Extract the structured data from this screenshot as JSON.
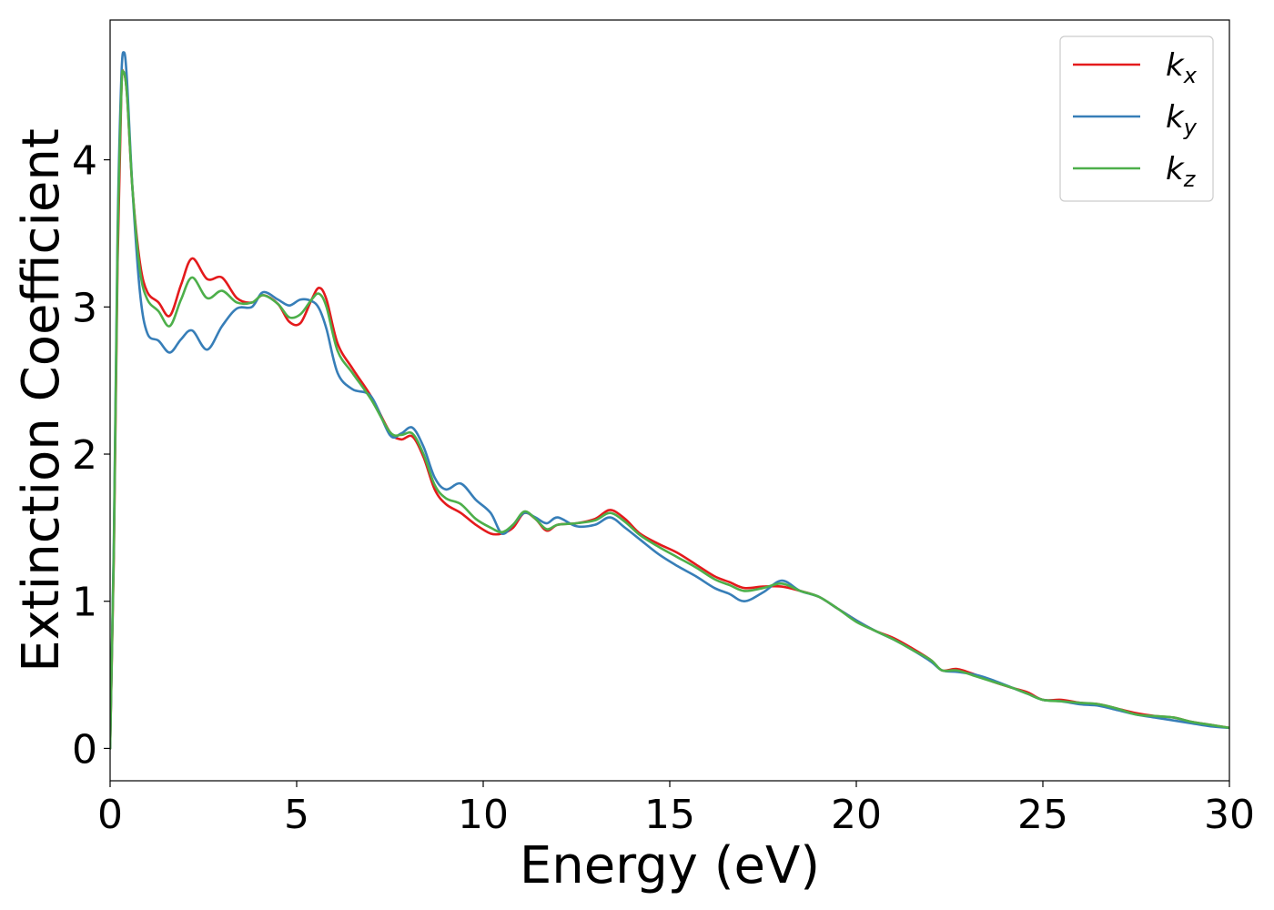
{
  "chart_data": {
    "type": "line",
    "xlabel": "Energy (eV)",
    "ylabel": "Extinction Coefficient",
    "xlim": [
      0,
      30
    ],
    "ylim": [
      -0.22,
      4.95
    ],
    "xticks": [
      0,
      5,
      10,
      15,
      20,
      25,
      30
    ],
    "yticks": [
      0,
      1,
      2,
      3,
      4
    ],
    "grid": false,
    "legend_position": "top-right",
    "series": [
      {
        "name": "k_x",
        "label_base": "k",
        "label_sub": "x",
        "color": "#e41a1c",
        "points": [
          [
            0,
            0
          ],
          [
            0.1,
            1.3
          ],
          [
            0.2,
            3.3
          ],
          [
            0.3,
            4.45
          ],
          [
            0.35,
            4.6
          ],
          [
            0.45,
            4.45
          ],
          [
            0.6,
            3.8
          ],
          [
            0.8,
            3.3
          ],
          [
            1.0,
            3.1
          ],
          [
            1.3,
            3.03
          ],
          [
            1.6,
            2.94
          ],
          [
            1.9,
            3.15
          ],
          [
            2.2,
            3.33
          ],
          [
            2.6,
            3.19
          ],
          [
            3.0,
            3.2
          ],
          [
            3.4,
            3.06
          ],
          [
            3.8,
            3.03
          ],
          [
            4.1,
            3.08
          ],
          [
            4.5,
            3.02
          ],
          [
            4.8,
            2.9
          ],
          [
            5.1,
            2.89
          ],
          [
            5.4,
            3.05
          ],
          [
            5.6,
            3.13
          ],
          [
            5.8,
            3.05
          ],
          [
            6.1,
            2.75
          ],
          [
            6.5,
            2.58
          ],
          [
            7.0,
            2.39
          ],
          [
            7.5,
            2.15
          ],
          [
            7.8,
            2.1
          ],
          [
            8.1,
            2.12
          ],
          [
            8.4,
            1.98
          ],
          [
            8.7,
            1.76
          ],
          [
            9.0,
            1.66
          ],
          [
            9.4,
            1.6
          ],
          [
            9.8,
            1.52
          ],
          [
            10.2,
            1.46
          ],
          [
            10.5,
            1.46
          ],
          [
            10.8,
            1.5
          ],
          [
            11.1,
            1.6
          ],
          [
            11.4,
            1.56
          ],
          [
            11.7,
            1.48
          ],
          [
            12.0,
            1.52
          ],
          [
            12.5,
            1.53
          ],
          [
            13.0,
            1.56
          ],
          [
            13.4,
            1.62
          ],
          [
            13.8,
            1.56
          ],
          [
            14.2,
            1.46
          ],
          [
            14.7,
            1.39
          ],
          [
            15.2,
            1.33
          ],
          [
            15.7,
            1.25
          ],
          [
            16.2,
            1.17
          ],
          [
            16.6,
            1.13
          ],
          [
            17.0,
            1.09
          ],
          [
            17.5,
            1.1
          ],
          [
            18.0,
            1.1
          ],
          [
            18.5,
            1.07
          ],
          [
            19.0,
            1.03
          ],
          [
            19.5,
            0.95
          ],
          [
            20.0,
            0.87
          ],
          [
            20.5,
            0.8
          ],
          [
            21.0,
            0.75
          ],
          [
            21.5,
            0.68
          ],
          [
            22.0,
            0.6
          ],
          [
            22.3,
            0.53
          ],
          [
            22.7,
            0.54
          ],
          [
            23.2,
            0.5
          ],
          [
            23.7,
            0.45
          ],
          [
            24.2,
            0.41
          ],
          [
            24.6,
            0.38
          ],
          [
            25.0,
            0.33
          ],
          [
            25.5,
            0.33
          ],
          [
            26.0,
            0.31
          ],
          [
            26.5,
            0.3
          ],
          [
            27.0,
            0.27
          ],
          [
            27.5,
            0.24
          ],
          [
            28.0,
            0.22
          ],
          [
            28.5,
            0.21
          ],
          [
            29.0,
            0.18
          ],
          [
            29.5,
            0.16
          ],
          [
            30.0,
            0.14
          ]
        ]
      },
      {
        "name": "k_y",
        "label_base": "k",
        "label_sub": "y",
        "color": "#377eb8",
        "points": [
          [
            0,
            0
          ],
          [
            0.1,
            1.4
          ],
          [
            0.2,
            3.5
          ],
          [
            0.3,
            4.55
          ],
          [
            0.37,
            4.73
          ],
          [
            0.45,
            4.55
          ],
          [
            0.6,
            3.8
          ],
          [
            0.8,
            3.1
          ],
          [
            1.0,
            2.82
          ],
          [
            1.3,
            2.77
          ],
          [
            1.6,
            2.69
          ],
          [
            1.9,
            2.78
          ],
          [
            2.2,
            2.84
          ],
          [
            2.6,
            2.71
          ],
          [
            3.0,
            2.87
          ],
          [
            3.4,
            2.99
          ],
          [
            3.8,
            3.0
          ],
          [
            4.1,
            3.1
          ],
          [
            4.5,
            3.05
          ],
          [
            4.8,
            3.01
          ],
          [
            5.1,
            3.05
          ],
          [
            5.4,
            3.04
          ],
          [
            5.6,
            2.99
          ],
          [
            5.8,
            2.85
          ],
          [
            6.1,
            2.55
          ],
          [
            6.5,
            2.44
          ],
          [
            7.0,
            2.39
          ],
          [
            7.5,
            2.13
          ],
          [
            7.8,
            2.14
          ],
          [
            8.1,
            2.18
          ],
          [
            8.4,
            2.05
          ],
          [
            8.7,
            1.84
          ],
          [
            9.0,
            1.76
          ],
          [
            9.4,
            1.8
          ],
          [
            9.8,
            1.69
          ],
          [
            10.2,
            1.6
          ],
          [
            10.5,
            1.46
          ],
          [
            10.8,
            1.52
          ],
          [
            11.1,
            1.6
          ],
          [
            11.4,
            1.57
          ],
          [
            11.7,
            1.53
          ],
          [
            12.0,
            1.57
          ],
          [
            12.5,
            1.51
          ],
          [
            13.0,
            1.52
          ],
          [
            13.4,
            1.57
          ],
          [
            13.8,
            1.5
          ],
          [
            14.2,
            1.42
          ],
          [
            14.7,
            1.32
          ],
          [
            15.2,
            1.24
          ],
          [
            15.7,
            1.17
          ],
          [
            16.2,
            1.09
          ],
          [
            16.6,
            1.05
          ],
          [
            17.0,
            1.0
          ],
          [
            17.5,
            1.06
          ],
          [
            18.0,
            1.14
          ],
          [
            18.5,
            1.07
          ],
          [
            19.0,
            1.03
          ],
          [
            19.5,
            0.95
          ],
          [
            20.0,
            0.87
          ],
          [
            20.5,
            0.8
          ],
          [
            21.0,
            0.74
          ],
          [
            21.5,
            0.67
          ],
          [
            22.0,
            0.59
          ],
          [
            22.3,
            0.53
          ],
          [
            22.7,
            0.52
          ],
          [
            23.2,
            0.5
          ],
          [
            23.7,
            0.46
          ],
          [
            24.2,
            0.41
          ],
          [
            24.6,
            0.37
          ],
          [
            25.0,
            0.33
          ],
          [
            25.5,
            0.32
          ],
          [
            26.0,
            0.3
          ],
          [
            26.5,
            0.29
          ],
          [
            27.0,
            0.26
          ],
          [
            27.5,
            0.23
          ],
          [
            28.0,
            0.21
          ],
          [
            28.5,
            0.19
          ],
          [
            29.0,
            0.17
          ],
          [
            29.5,
            0.15
          ],
          [
            30.0,
            0.14
          ]
        ]
      },
      {
        "name": "k_z",
        "label_base": "k",
        "label_sub": "z",
        "color": "#4daf4a",
        "points": [
          [
            0,
            0
          ],
          [
            0.1,
            1.35
          ],
          [
            0.2,
            3.4
          ],
          [
            0.3,
            4.45
          ],
          [
            0.35,
            4.6
          ],
          [
            0.45,
            4.45
          ],
          [
            0.6,
            3.8
          ],
          [
            0.8,
            3.25
          ],
          [
            1.0,
            3.05
          ],
          [
            1.3,
            2.97
          ],
          [
            1.6,
            2.87
          ],
          [
            1.9,
            3.05
          ],
          [
            2.2,
            3.2
          ],
          [
            2.6,
            3.06
          ],
          [
            3.0,
            3.11
          ],
          [
            3.4,
            3.03
          ],
          [
            3.8,
            3.03
          ],
          [
            4.1,
            3.08
          ],
          [
            4.5,
            3.02
          ],
          [
            4.8,
            2.93
          ],
          [
            5.1,
            2.95
          ],
          [
            5.4,
            3.05
          ],
          [
            5.6,
            3.09
          ],
          [
            5.8,
            3.0
          ],
          [
            6.1,
            2.7
          ],
          [
            6.5,
            2.55
          ],
          [
            7.0,
            2.37
          ],
          [
            7.5,
            2.15
          ],
          [
            7.8,
            2.13
          ],
          [
            8.1,
            2.14
          ],
          [
            8.4,
            2.0
          ],
          [
            8.7,
            1.79
          ],
          [
            9.0,
            1.7
          ],
          [
            9.4,
            1.66
          ],
          [
            9.8,
            1.56
          ],
          [
            10.2,
            1.5
          ],
          [
            10.5,
            1.47
          ],
          [
            10.8,
            1.52
          ],
          [
            11.1,
            1.61
          ],
          [
            11.4,
            1.56
          ],
          [
            11.7,
            1.49
          ],
          [
            12.0,
            1.52
          ],
          [
            12.5,
            1.53
          ],
          [
            13.0,
            1.55
          ],
          [
            13.4,
            1.6
          ],
          [
            13.8,
            1.54
          ],
          [
            14.2,
            1.45
          ],
          [
            14.7,
            1.37
          ],
          [
            15.2,
            1.3
          ],
          [
            15.7,
            1.23
          ],
          [
            16.2,
            1.15
          ],
          [
            16.6,
            1.11
          ],
          [
            17.0,
            1.07
          ],
          [
            17.5,
            1.09
          ],
          [
            18.0,
            1.12
          ],
          [
            18.5,
            1.07
          ],
          [
            19.0,
            1.03
          ],
          [
            19.5,
            0.95
          ],
          [
            20.0,
            0.86
          ],
          [
            20.5,
            0.8
          ],
          [
            21.0,
            0.74
          ],
          [
            21.5,
            0.67
          ],
          [
            22.0,
            0.6
          ],
          [
            22.3,
            0.53
          ],
          [
            22.7,
            0.53
          ],
          [
            23.2,
            0.49
          ],
          [
            23.7,
            0.45
          ],
          [
            24.2,
            0.41
          ],
          [
            24.6,
            0.37
          ],
          [
            25.0,
            0.33
          ],
          [
            25.5,
            0.32
          ],
          [
            26.0,
            0.31
          ],
          [
            26.5,
            0.3
          ],
          [
            27.0,
            0.27
          ],
          [
            27.5,
            0.23
          ],
          [
            28.0,
            0.22
          ],
          [
            28.5,
            0.21
          ],
          [
            29.0,
            0.18
          ],
          [
            29.5,
            0.16
          ],
          [
            30.0,
            0.14
          ]
        ]
      }
    ]
  }
}
